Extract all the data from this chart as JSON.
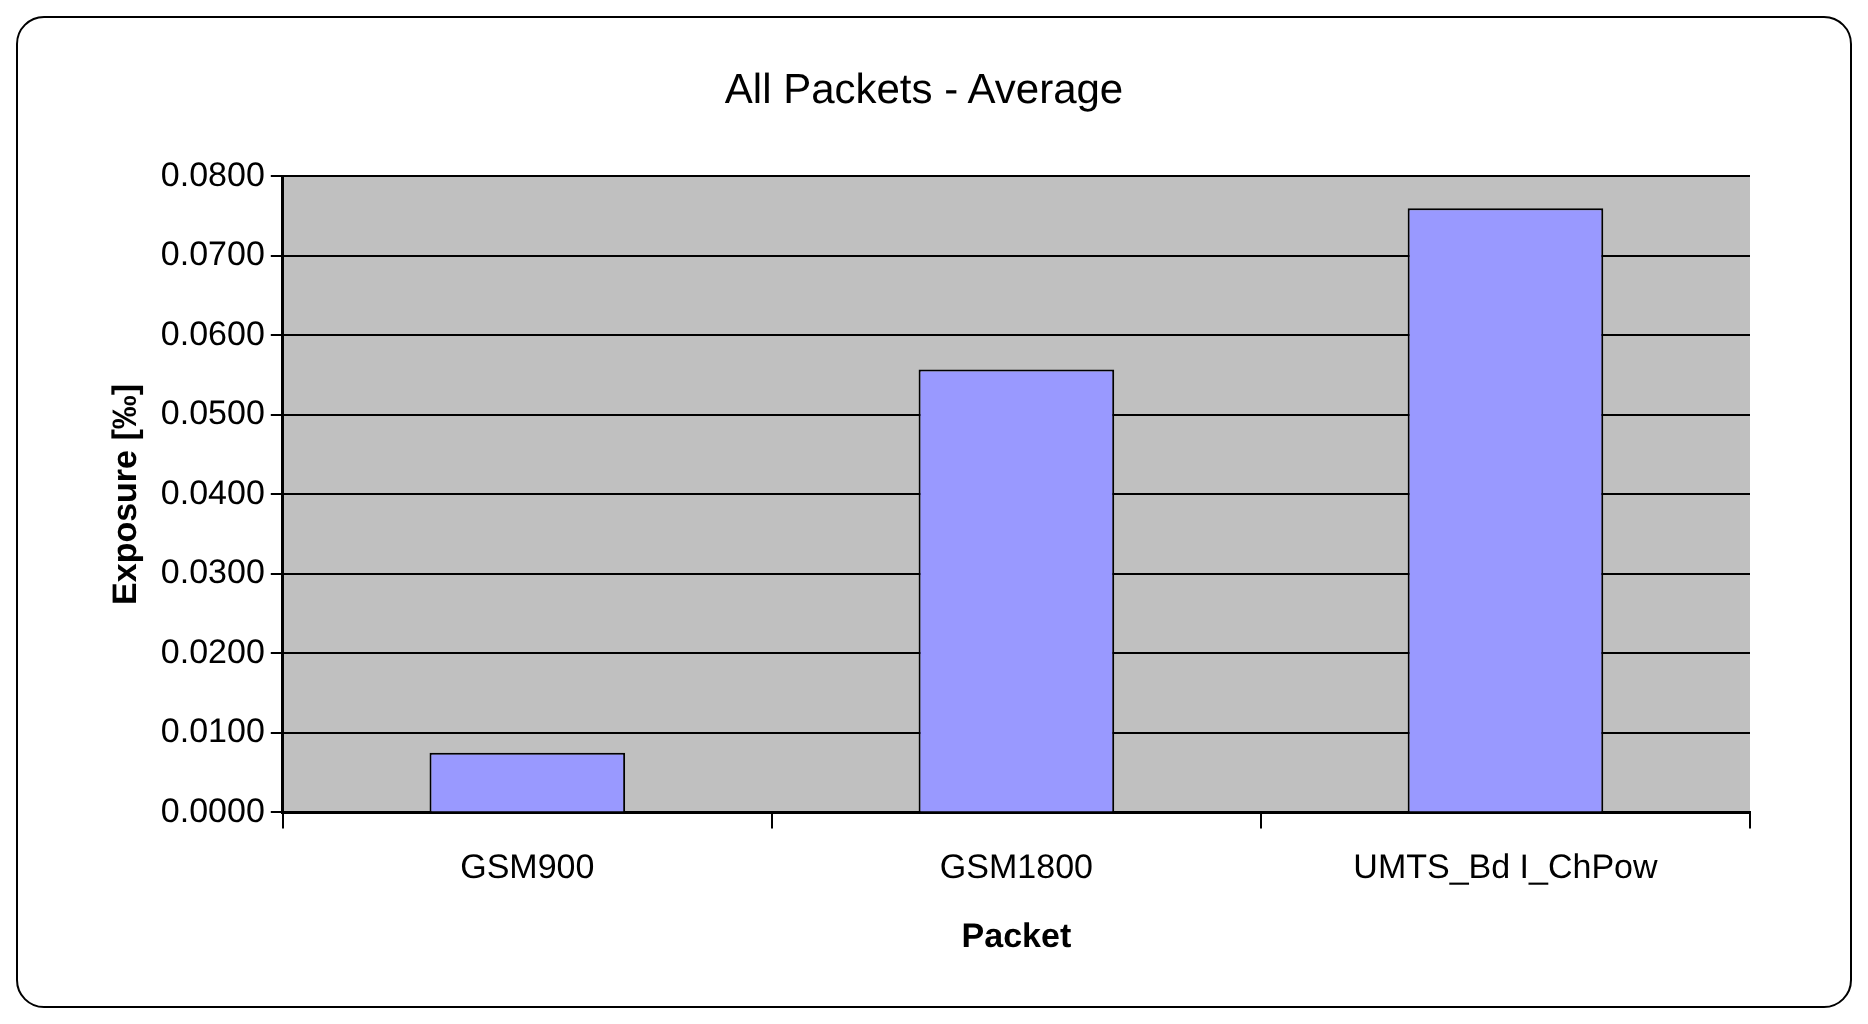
{
  "chart_data": {
    "type": "bar",
    "title": "All Packets - Average",
    "xlabel": "Packet",
    "ylabel": "Exposure [‰]",
    "categories": [
      "GSM900",
      "GSM1800",
      "UMTS_Bd I_ChPow"
    ],
    "values": [
      0.0075,
      0.0557,
      0.076
    ],
    "color": "#9999ff",
    "ylim": [
      0,
      0.08
    ],
    "yticks": [
      {
        "value": 0,
        "label": "0.0000"
      },
      {
        "value": 0.01,
        "label": "0.0100"
      },
      {
        "value": 0.02,
        "label": "0.0200"
      },
      {
        "value": 0.03,
        "label": "0.0300"
      },
      {
        "value": 0.04,
        "label": "0.0400"
      },
      {
        "value": 0.05,
        "label": "0.0500"
      },
      {
        "value": 0.06,
        "label": "0.0600"
      },
      {
        "value": 0.07,
        "label": "0.0700"
      },
      {
        "value": 0.08,
        "label": "0.0800"
      }
    ],
    "grid": "y",
    "legend": false
  }
}
